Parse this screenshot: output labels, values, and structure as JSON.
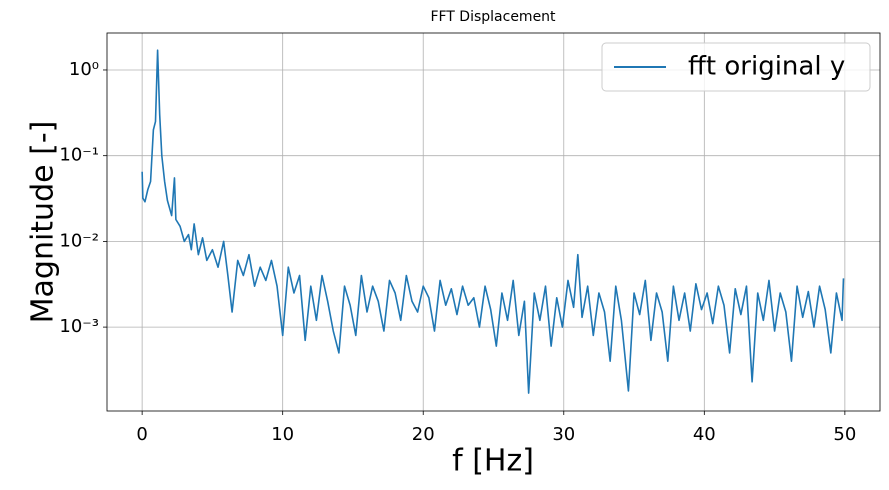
{
  "chart_data": {
    "type": "line",
    "title": "FFT Displacement",
    "x_label": "f [Hz]",
    "y_label": "Magnitude [-]",
    "x": [
      0,
      0.05,
      0.2,
      0.4,
      0.6,
      0.8,
      0.95,
      1.1,
      1.25,
      1.4,
      1.6,
      1.8,
      2.1,
      2.3,
      2.4,
      2.7,
      3.0,
      3.3,
      3.5,
      3.7,
      4.0,
      4.3,
      4.6,
      5.0,
      5.4,
      5.8,
      6.1,
      6.4,
      6.8,
      7.2,
      7.6,
      8.0,
      8.4,
      8.8,
      9.2,
      9.6,
      10.0,
      10.4,
      10.8,
      11.2,
      11.6,
      12.0,
      12.4,
      12.8,
      13.2,
      13.6,
      14.0,
      14.4,
      14.8,
      15.2,
      15.6,
      16.0,
      16.4,
      16.8,
      17.2,
      17.6,
      18.0,
      18.4,
      18.8,
      19.2,
      19.6,
      20.0,
      20.4,
      20.8,
      21.2,
      21.6,
      22.0,
      22.4,
      22.8,
      23.2,
      23.6,
      24.0,
      24.4,
      24.8,
      25.2,
      25.6,
      26.0,
      26.4,
      26.8,
      27.2,
      27.5,
      27.9,
      28.3,
      28.7,
      29.1,
      29.5,
      29.9,
      30.3,
      30.7,
      31.0,
      31.3,
      31.7,
      32.1,
      32.5,
      32.9,
      33.3,
      33.7,
      34.1,
      34.6,
      35.0,
      35.4,
      35.8,
      36.2,
      36.6,
      37.0,
      37.4,
      37.8,
      38.2,
      38.6,
      39.0,
      39.4,
      39.8,
      40.2,
      40.6,
      41.0,
      41.4,
      41.8,
      42.2,
      42.6,
      43.0,
      43.4,
      43.8,
      44.2,
      44.6,
      45.0,
      45.4,
      45.8,
      46.2,
      46.6,
      47.0,
      47.4,
      47.8,
      48.2,
      48.6,
      49.0,
      49.4,
      49.8,
      49.9
    ],
    "series": [
      {
        "name": "fft original y",
        "color": "#1f77b4",
        "values": [
          0.065,
          0.032,
          0.029,
          0.04,
          0.05,
          0.2,
          0.25,
          1.7,
          0.3,
          0.1,
          0.05,
          0.03,
          0.02,
          0.055,
          0.018,
          0.015,
          0.01,
          0.012,
          0.008,
          0.016,
          0.007,
          0.011,
          0.006,
          0.008,
          0.005,
          0.01,
          0.004,
          0.0015,
          0.006,
          0.004,
          0.007,
          0.003,
          0.005,
          0.0035,
          0.006,
          0.003,
          0.0008,
          0.005,
          0.0025,
          0.004,
          0.0007,
          0.003,
          0.0012,
          0.004,
          0.002,
          0.0009,
          0.0005,
          0.003,
          0.0018,
          0.0008,
          0.004,
          0.0015,
          0.003,
          0.002,
          0.0009,
          0.0035,
          0.0025,
          0.0012,
          0.004,
          0.002,
          0.0015,
          0.003,
          0.0022,
          0.0009,
          0.0035,
          0.0018,
          0.0028,
          0.0014,
          0.003,
          0.0018,
          0.0022,
          0.001,
          0.003,
          0.0016,
          0.0006,
          0.0025,
          0.0012,
          0.0035,
          0.0008,
          0.002,
          0.00017,
          0.0025,
          0.0012,
          0.003,
          0.0006,
          0.0022,
          0.001,
          0.0035,
          0.0017,
          0.007,
          0.0013,
          0.003,
          0.0008,
          0.0025,
          0.0015,
          0.0004,
          0.003,
          0.0012,
          0.00018,
          0.0025,
          0.0014,
          0.0035,
          0.0007,
          0.0025,
          0.0015,
          0.0004,
          0.003,
          0.0012,
          0.0025,
          0.0009,
          0.0032,
          0.0016,
          0.0025,
          0.0011,
          0.003,
          0.0018,
          0.0005,
          0.0028,
          0.0014,
          0.003,
          0.00023,
          0.0025,
          0.0012,
          0.0035,
          0.0009,
          0.0025,
          0.0015,
          0.0004,
          0.003,
          0.0013,
          0.0026,
          0.001,
          0.003,
          0.0016,
          0.0005,
          0.0025,
          0.0012,
          0.0037
        ]
      }
    ],
    "xlim": [
      -2.5,
      52.5
    ],
    "xticks": [
      0,
      10,
      20,
      30,
      40,
      50
    ],
    "ylim": [
      0.000105,
      2.7
    ],
    "yscale": "log",
    "yticks": [
      {
        "value": 0.001,
        "label": "10⁻³"
      },
      {
        "value": 0.01,
        "label": "10⁻²"
      },
      {
        "value": 0.1,
        "label": "10⁻¹"
      },
      {
        "value": 1,
        "label": "10⁰"
      }
    ],
    "grid": true,
    "legend": "upper right"
  }
}
